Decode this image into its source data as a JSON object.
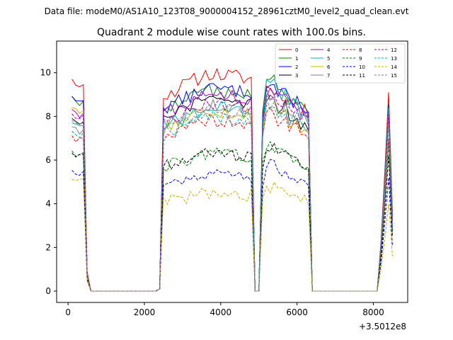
{
  "chart_data": {
    "type": "line",
    "suptitle": "Data file: modeM0/AS1A10_123T08_9000004152_28961cztM0_level2_quad_clean.evt",
    "title": "Quadrant 2 module wise count rates with 100.0s bins.",
    "xlabel": "",
    "ylabel": "",
    "x_offset_label": "+3.5012e8",
    "xlim": [
      -300,
      8900
    ],
    "ylim": [
      -0.52,
      11.45
    ],
    "x_ticks": [
      0,
      2000,
      4000,
      6000,
      8000
    ],
    "x_tick_labels": [
      "0",
      "2000",
      "4000",
      "6000",
      "8000"
    ],
    "y_ticks": [
      0,
      2,
      4,
      6,
      8,
      10
    ],
    "y_tick_labels": [
      "0",
      "2",
      "4",
      "6",
      "8",
      "10"
    ],
    "legend_position": "top-right",
    "legend_columns": 4,
    "x_segments": [
      {
        "start": 100,
        "end": 400
      },
      {
        "start": 500,
        "end": 600
      },
      {
        "start": 700,
        "end": 2300
      },
      {
        "start": 2400,
        "end": 4800
      },
      {
        "start": 4900,
        "end": 5000
      },
      {
        "start": 5100,
        "end": 6300
      },
      {
        "start": 6400,
        "end": 8100
      },
      {
        "start": 8200,
        "end": 8500
      }
    ],
    "series": [
      {
        "name": "0",
        "color": "#ff0000",
        "dash": "solid",
        "seed": 11,
        "a1": 9.8,
        "a2": 9.95,
        "s3": [
          9.3,
          9.0,
          8.6,
          8.2
        ],
        "peak": 9.1,
        "amp": 0.35
      },
      {
        "name": "1",
        "color": "#008000",
        "dash": "solid",
        "seed": 12,
        "a1": 9.0,
        "a2": 9.2,
        "s3": [
          9.7,
          9.2,
          8.7,
          8.4
        ],
        "peak": 8.6,
        "amp": 0.3
      },
      {
        "name": "2",
        "color": "#0000ff",
        "dash": "solid",
        "seed": 13,
        "a1": 9.0,
        "a2": 9.3,
        "s3": [
          9.4,
          9.0,
          8.7,
          8.4
        ],
        "peak": 8.5,
        "amp": 0.3
      },
      {
        "name": "3",
        "color": "#000000",
        "dash": "solid",
        "seed": 14,
        "a1": 8.0,
        "a2": 8.8,
        "s3": [
          8.9,
          8.4,
          7.9,
          7.6
        ],
        "peak": 8.2,
        "amp": 0.35
      },
      {
        "name": "4",
        "color": "#aa00cc",
        "dash": "solid",
        "seed": 15,
        "a1": 8.4,
        "a2": 9.0,
        "s3": [
          9.2,
          8.8,
          8.5,
          8.2
        ],
        "peak": 8.3,
        "amp": 0.3
      },
      {
        "name": "5",
        "color": "#00b4b4",
        "dash": "solid",
        "seed": 16,
        "a1": 7.8,
        "a2": 8.4,
        "s3": [
          9.4,
          9.0,
          8.5,
          8.0
        ],
        "peak": 8.4,
        "amp": 0.35
      },
      {
        "name": "6",
        "color": "#c8b400",
        "dash": "solid",
        "seed": 17,
        "a1": 8.5,
        "a2": 8.3,
        "s3": [
          8.6,
          8.1,
          7.8,
          7.5
        ],
        "peak": 8.0,
        "amp": 0.35
      },
      {
        "name": "7",
        "color": "#808080",
        "dash": "solid",
        "seed": 18,
        "a1": 7.6,
        "a2": 8.5,
        "s3": [
          8.8,
          8.4,
          8.0,
          7.8
        ],
        "peak": 7.9,
        "amp": 0.3
      },
      {
        "name": "8",
        "color": "#ff0000",
        "dash": "dashed",
        "seed": 19,
        "a1": 7.2,
        "a2": 7.8,
        "s3": [
          8.2,
          7.8,
          7.5,
          7.2
        ],
        "peak": 7.0,
        "amp": 0.3
      },
      {
        "name": "9",
        "color": "#008000",
        "dash": "dashed",
        "seed": 20,
        "a1": 6.5,
        "a2": 6.3,
        "s3": [
          6.6,
          6.3,
          6.1,
          5.9
        ],
        "peak": 6.8,
        "amp": 0.3
      },
      {
        "name": "10",
        "color": "#0000ff",
        "dash": "dashed",
        "seed": 21,
        "a1": 5.6,
        "a2": 5.4,
        "s3": [
          5.8,
          5.4,
          5.2,
          5.0
        ],
        "peak": 5.2,
        "amp": 0.25
      },
      {
        "name": "11",
        "color": "#000000",
        "dash": "dashed",
        "seed": 22,
        "a1": 6.4,
        "a2": 6.3,
        "s3": [
          6.7,
          6.3,
          6.0,
          5.8
        ],
        "peak": 6.2,
        "amp": 0.3
      },
      {
        "name": "12",
        "color": "#aa00cc",
        "dash": "dashed",
        "seed": 23,
        "a1": 8.2,
        "a2": 8.6,
        "s3": [
          9.0,
          8.7,
          8.4,
          8.1
        ],
        "peak": 8.1,
        "amp": 0.3
      },
      {
        "name": "13",
        "color": "#00b4b4",
        "dash": "dashed",
        "seed": 24,
        "a1": 7.4,
        "a2": 8.0,
        "s3": [
          8.6,
          8.2,
          7.9,
          7.6
        ],
        "peak": 7.6,
        "amp": 0.3
      },
      {
        "name": "14",
        "color": "#c8b400",
        "dash": "dashed",
        "seed": 25,
        "a1": 5.2,
        "a2": 4.5,
        "s3": [
          4.7,
          4.5,
          4.3,
          4.2
        ],
        "peak": 4.0,
        "amp": 0.3
      },
      {
        "name": "15",
        "color": "#808080",
        "dash": "dashed",
        "seed": 26,
        "a1": 7.9,
        "a2": 8.3,
        "s3": [
          8.5,
          8.1,
          7.8,
          7.5
        ],
        "peak": 7.7,
        "amp": 0.3
      }
    ]
  }
}
